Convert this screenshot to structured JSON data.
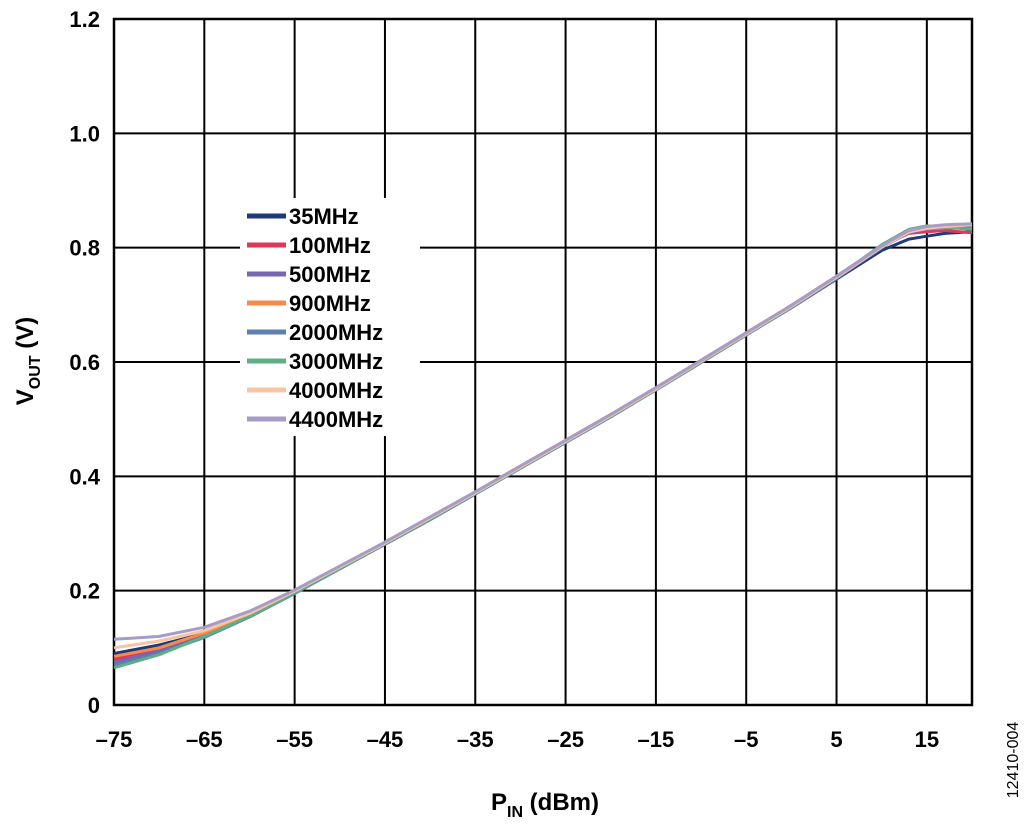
{
  "chart_data": {
    "type": "line",
    "xlabel": {
      "main": "P",
      "sub": "IN",
      "rest": " (dBm)"
    },
    "ylabel": {
      "main": "V",
      "sub": "OUT",
      "rest": " (V)"
    },
    "xlim": [
      -75,
      20
    ],
    "ylim": [
      0,
      1.2
    ],
    "x_ticks": [
      -75,
      -65,
      -55,
      -45,
      -35,
      -25,
      -15,
      -5,
      5,
      15
    ],
    "x_tick_labels": [
      "–75",
      "–65",
      "–55",
      "–45",
      "–35",
      "–25",
      "–15",
      "–5",
      "5",
      "15"
    ],
    "y_ticks": [
      0,
      0.2,
      0.4,
      0.6,
      0.8,
      1.0,
      1.2
    ],
    "y_tick_labels": [
      "0",
      "0.2",
      "0.4",
      "0.6",
      "0.8",
      "1.0",
      "1.2"
    ],
    "grid": true,
    "legend_position": "center-left",
    "figure_id": "12410-004",
    "series": [
      {
        "name": "35MHz",
        "color": "#1f3a7a",
        "x": [
          -75,
          -70,
          -65,
          -60,
          -55,
          -50,
          -45,
          -40,
          -35,
          -30,
          -25,
          -20,
          -15,
          -10,
          -5,
          0,
          5,
          10,
          13,
          15,
          17,
          20
        ],
        "y": [
          0.09,
          0.105,
          0.125,
          0.158,
          0.198,
          0.24,
          0.282,
          0.325,
          0.37,
          0.415,
          0.46,
          0.505,
          0.552,
          0.6,
          0.648,
          0.695,
          0.745,
          0.795,
          0.815,
          0.82,
          0.825,
          0.828
        ]
      },
      {
        "name": "100MHz",
        "color": "#e0365a",
        "x": [
          -75,
          -70,
          -65,
          -60,
          -55,
          -50,
          -45,
          -40,
          -35,
          -30,
          -25,
          -20,
          -15,
          -10,
          -5,
          0,
          5,
          10,
          13,
          15,
          17,
          20
        ],
        "y": [
          0.08,
          0.1,
          0.124,
          0.158,
          0.198,
          0.242,
          0.284,
          0.328,
          0.372,
          0.418,
          0.463,
          0.508,
          0.555,
          0.603,
          0.651,
          0.699,
          0.75,
          0.803,
          0.825,
          0.828,
          0.83,
          0.826
        ]
      },
      {
        "name": "500MHz",
        "color": "#7866b0",
        "x": [
          -75,
          -70,
          -65,
          -60,
          -55,
          -50,
          -45,
          -40,
          -35,
          -30,
          -25,
          -20,
          -15,
          -10,
          -5,
          0,
          5,
          10,
          13,
          15,
          17,
          20
        ],
        "y": [
          0.075,
          0.095,
          0.122,
          0.156,
          0.197,
          0.24,
          0.283,
          0.326,
          0.371,
          0.416,
          0.461,
          0.506,
          0.553,
          0.601,
          0.649,
          0.697,
          0.748,
          0.801,
          0.826,
          0.832,
          0.834,
          0.835
        ]
      },
      {
        "name": "900MHz",
        "color": "#f58a4b",
        "x": [
          -75,
          -70,
          -65,
          -60,
          -55,
          -50,
          -45,
          -40,
          -35,
          -30,
          -25,
          -20,
          -15,
          -10,
          -5,
          0,
          5,
          10,
          13,
          15,
          17,
          20
        ],
        "y": [
          0.085,
          0.1,
          0.126,
          0.158,
          0.198,
          0.241,
          0.283,
          0.327,
          0.371,
          0.416,
          0.461,
          0.507,
          0.554,
          0.602,
          0.65,
          0.698,
          0.749,
          0.802,
          0.828,
          0.833,
          0.835,
          0.836
        ]
      },
      {
        "name": "2000MHz",
        "color": "#5f7fae",
        "x": [
          -75,
          -70,
          -65,
          -60,
          -55,
          -50,
          -45,
          -40,
          -35,
          -30,
          -25,
          -20,
          -15,
          -10,
          -5,
          0,
          5,
          10,
          13,
          15,
          17,
          20
        ],
        "y": [
          0.07,
          0.09,
          0.118,
          0.154,
          0.195,
          0.238,
          0.281,
          0.324,
          0.369,
          0.414,
          0.459,
          0.504,
          0.551,
          0.599,
          0.647,
          0.695,
          0.746,
          0.8,
          0.828,
          0.834,
          0.836,
          0.838
        ]
      },
      {
        "name": "3000MHz",
        "color": "#5fae84",
        "x": [
          -75,
          -70,
          -65,
          -60,
          -55,
          -50,
          -45,
          -40,
          -35,
          -30,
          -25,
          -20,
          -15,
          -10,
          -5,
          0,
          5,
          10,
          13,
          15,
          17,
          20
        ],
        "y": [
          0.065,
          0.088,
          0.12,
          0.155,
          0.196,
          0.239,
          0.282,
          0.325,
          0.37,
          0.415,
          0.46,
          0.505,
          0.552,
          0.6,
          0.648,
          0.696,
          0.748,
          0.805,
          0.832,
          0.838,
          0.836,
          0.832
        ]
      },
      {
        "name": "4000MHz",
        "color": "#f7c4a4",
        "x": [
          -75,
          -70,
          -65,
          -60,
          -55,
          -50,
          -45,
          -40,
          -35,
          -30,
          -25,
          -20,
          -15,
          -10,
          -5,
          0,
          5,
          10,
          13,
          15,
          17,
          20
        ],
        "y": [
          0.1,
          0.112,
          0.13,
          0.16,
          0.199,
          0.241,
          0.283,
          0.327,
          0.371,
          0.416,
          0.461,
          0.506,
          0.553,
          0.601,
          0.649,
          0.697,
          0.748,
          0.801,
          0.827,
          0.834,
          0.837,
          0.84
        ]
      },
      {
        "name": "4400MHz",
        "color": "#a79bc7",
        "x": [
          -75,
          -70,
          -65,
          -60,
          -55,
          -50,
          -45,
          -40,
          -35,
          -30,
          -25,
          -20,
          -15,
          -10,
          -5,
          0,
          5,
          10,
          13,
          15,
          17,
          20
        ],
        "y": [
          0.115,
          0.12,
          0.136,
          0.164,
          0.201,
          0.243,
          0.285,
          0.329,
          0.373,
          0.418,
          0.463,
          0.508,
          0.555,
          0.603,
          0.651,
          0.699,
          0.75,
          0.803,
          0.83,
          0.837,
          0.84,
          0.842
        ]
      }
    ]
  }
}
